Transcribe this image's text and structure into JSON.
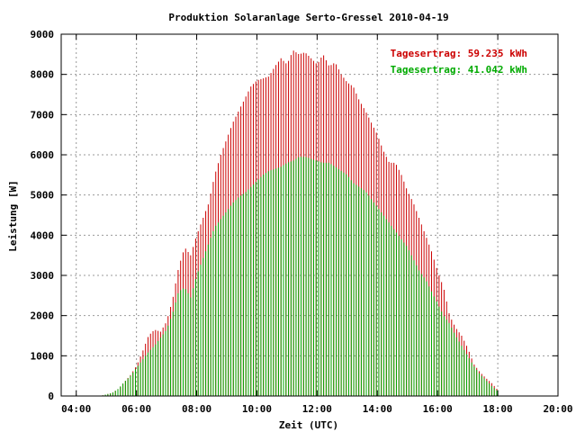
{
  "chart_data": {
    "type": "bar",
    "title": "Produktion Solaranlage Serto-Gressel 2010-04-19",
    "xlabel": "Zeit (UTC)",
    "ylabel": "Leistung [W]",
    "xlim": [
      3.5,
      20
    ],
    "ylim": [
      0,
      9000
    ],
    "grid": true,
    "legend_position": "top-right",
    "x_ticks": [
      "04:00",
      "06:00",
      "08:00",
      "10:00",
      "12:00",
      "14:00",
      "16:00",
      "18:00",
      "20:00"
    ],
    "y_ticks": [
      "0",
      "1000",
      "2000",
      "3000",
      "4000",
      "5000",
      "6000",
      "7000",
      "8000",
      "9000"
    ],
    "series": [
      {
        "name": "Tagesertrag: 59.235 kWh",
        "color": "#cc0000",
        "points": [
          [
            4.8,
            0
          ],
          [
            5.0,
            40
          ],
          [
            5.2,
            80
          ],
          [
            5.4,
            180
          ],
          [
            5.6,
            350
          ],
          [
            5.8,
            520
          ],
          [
            6.0,
            750
          ],
          [
            6.2,
            1100
          ],
          [
            6.4,
            1500
          ],
          [
            6.6,
            1650
          ],
          [
            6.8,
            1600
          ],
          [
            7.0,
            1850
          ],
          [
            7.2,
            2400
          ],
          [
            7.4,
            3200
          ],
          [
            7.6,
            3700
          ],
          [
            7.8,
            3500
          ],
          [
            8.0,
            4000
          ],
          [
            8.2,
            4400
          ],
          [
            8.4,
            4800
          ],
          [
            8.6,
            5500
          ],
          [
            8.8,
            6000
          ],
          [
            9.0,
            6400
          ],
          [
            9.2,
            6800
          ],
          [
            9.4,
            7100
          ],
          [
            9.6,
            7400
          ],
          [
            9.8,
            7700
          ],
          [
            10.0,
            7850
          ],
          [
            10.2,
            7900
          ],
          [
            10.4,
            7950
          ],
          [
            10.6,
            8200
          ],
          [
            10.8,
            8400
          ],
          [
            11.0,
            8250
          ],
          [
            11.2,
            8600
          ],
          [
            11.4,
            8500
          ],
          [
            11.6,
            8550
          ],
          [
            11.8,
            8400
          ],
          [
            12.0,
            8250
          ],
          [
            12.2,
            8500
          ],
          [
            12.4,
            8200
          ],
          [
            12.6,
            8300
          ],
          [
            12.8,
            8000
          ],
          [
            13.0,
            7800
          ],
          [
            13.2,
            7700
          ],
          [
            13.4,
            7350
          ],
          [
            13.6,
            7100
          ],
          [
            13.8,
            6800
          ],
          [
            14.0,
            6500
          ],
          [
            14.2,
            6100
          ],
          [
            14.4,
            5800
          ],
          [
            14.6,
            5800
          ],
          [
            14.8,
            5500
          ],
          [
            15.0,
            5100
          ],
          [
            15.2,
            4800
          ],
          [
            15.4,
            4400
          ],
          [
            15.6,
            4000
          ],
          [
            15.8,
            3600
          ],
          [
            16.0,
            3100
          ],
          [
            16.2,
            2700
          ],
          [
            16.4,
            2000
          ],
          [
            16.6,
            1700
          ],
          [
            16.8,
            1500
          ],
          [
            17.0,
            1200
          ],
          [
            17.2,
            800
          ],
          [
            17.4,
            600
          ],
          [
            17.6,
            450
          ],
          [
            17.8,
            320
          ],
          [
            18.0,
            150
          ]
        ]
      },
      {
        "name": "Tagesertrag: 41.042 kWh",
        "color": "#00aa00",
        "points": [
          [
            4.8,
            0
          ],
          [
            5.0,
            40
          ],
          [
            5.2,
            80
          ],
          [
            5.4,
            180
          ],
          [
            5.6,
            350
          ],
          [
            5.8,
            500
          ],
          [
            6.0,
            700
          ],
          [
            6.2,
            900
          ],
          [
            6.4,
            1100
          ],
          [
            6.6,
            1250
          ],
          [
            6.8,
            1450
          ],
          [
            7.0,
            1650
          ],
          [
            7.2,
            2050
          ],
          [
            7.4,
            2600
          ],
          [
            7.6,
            2700
          ],
          [
            7.8,
            2450
          ],
          [
            8.0,
            3000
          ],
          [
            8.2,
            3400
          ],
          [
            8.4,
            3800
          ],
          [
            8.6,
            4200
          ],
          [
            8.8,
            4400
          ],
          [
            9.0,
            4600
          ],
          [
            9.2,
            4800
          ],
          [
            9.4,
            4950
          ],
          [
            9.6,
            5050
          ],
          [
            9.8,
            5200
          ],
          [
            10.0,
            5350
          ],
          [
            10.2,
            5500
          ],
          [
            10.4,
            5600
          ],
          [
            10.6,
            5650
          ],
          [
            10.8,
            5700
          ],
          [
            11.0,
            5800
          ],
          [
            11.2,
            5850
          ],
          [
            11.4,
            5950
          ],
          [
            11.6,
            5950
          ],
          [
            11.8,
            5900
          ],
          [
            12.0,
            5850
          ],
          [
            12.2,
            5800
          ],
          [
            12.4,
            5800
          ],
          [
            12.6,
            5700
          ],
          [
            12.8,
            5600
          ],
          [
            13.0,
            5500
          ],
          [
            13.2,
            5300
          ],
          [
            13.4,
            5200
          ],
          [
            13.6,
            5100
          ],
          [
            13.8,
            4900
          ],
          [
            14.0,
            4700
          ],
          [
            14.2,
            4500
          ],
          [
            14.4,
            4300
          ],
          [
            14.6,
            4100
          ],
          [
            14.8,
            3900
          ],
          [
            15.0,
            3700
          ],
          [
            15.2,
            3400
          ],
          [
            15.4,
            3100
          ],
          [
            15.6,
            2900
          ],
          [
            15.8,
            2600
          ],
          [
            16.0,
            2300
          ],
          [
            16.2,
            2000
          ],
          [
            16.4,
            1800
          ],
          [
            16.6,
            1500
          ],
          [
            16.8,
            1250
          ],
          [
            17.0,
            1000
          ],
          [
            17.2,
            750
          ],
          [
            17.4,
            550
          ],
          [
            17.6,
            400
          ],
          [
            17.8,
            250
          ],
          [
            18.0,
            120
          ]
        ]
      }
    ]
  }
}
